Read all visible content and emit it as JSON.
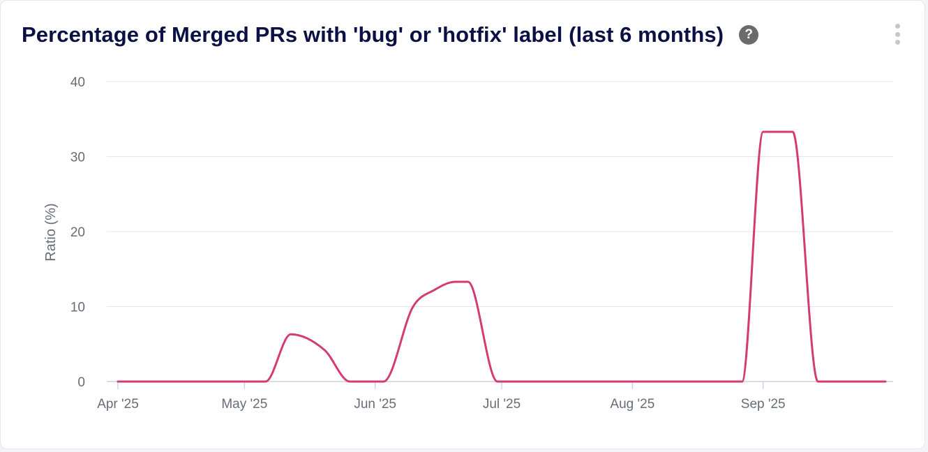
{
  "header": {
    "title": "Percentage of Merged PRs with 'bug' or 'hotfix' label (last 6 months)",
    "help_icon": "question-circle-icon",
    "menu_icon": "kebab-menu-icon"
  },
  "chart_data": {
    "type": "line",
    "title": "Percentage of Merged PRs with 'bug' or 'hotfix' label (last 6 months)",
    "xlabel": "",
    "ylabel": "Ratio (%)",
    "ylim": [
      0,
      40
    ],
    "yticks": [
      0,
      10,
      20,
      30,
      40
    ],
    "xlim": [
      "2025-04-01",
      "2025-09-30"
    ],
    "xticks": [
      {
        "date": "2025-04-01",
        "label": "Apr '25"
      },
      {
        "date": "2025-05-01",
        "label": "May '25"
      },
      {
        "date": "2025-06-01",
        "label": "Jun '25"
      },
      {
        "date": "2025-07-01",
        "label": "Jul '25"
      },
      {
        "date": "2025-08-01",
        "label": "Aug '25"
      },
      {
        "date": "2025-09-01",
        "label": "Sep '25"
      }
    ],
    "grid": true,
    "series": [
      {
        "color": "#d63a75",
        "points": [
          {
            "x": "2025-04-01",
            "y": 0
          },
          {
            "x": "2025-05-06",
            "y": 0
          },
          {
            "x": "2025-05-12",
            "y": 6.3
          },
          {
            "x": "2025-05-20",
            "y": 4.2
          },
          {
            "x": "2025-05-26",
            "y": 0
          },
          {
            "x": "2025-06-03",
            "y": 0
          },
          {
            "x": "2025-06-10",
            "y": 10.0
          },
          {
            "x": "2025-06-15",
            "y": 12.2
          },
          {
            "x": "2025-06-20",
            "y": 13.3
          },
          {
            "x": "2025-06-23",
            "y": 13.3
          },
          {
            "x": "2025-06-30",
            "y": 0
          },
          {
            "x": "2025-08-27",
            "y": 0
          },
          {
            "x": "2025-09-01",
            "y": 33.3
          },
          {
            "x": "2025-09-08",
            "y": 33.3
          },
          {
            "x": "2025-09-14",
            "y": 0
          },
          {
            "x": "2025-09-30",
            "y": 0
          }
        ]
      }
    ]
  }
}
